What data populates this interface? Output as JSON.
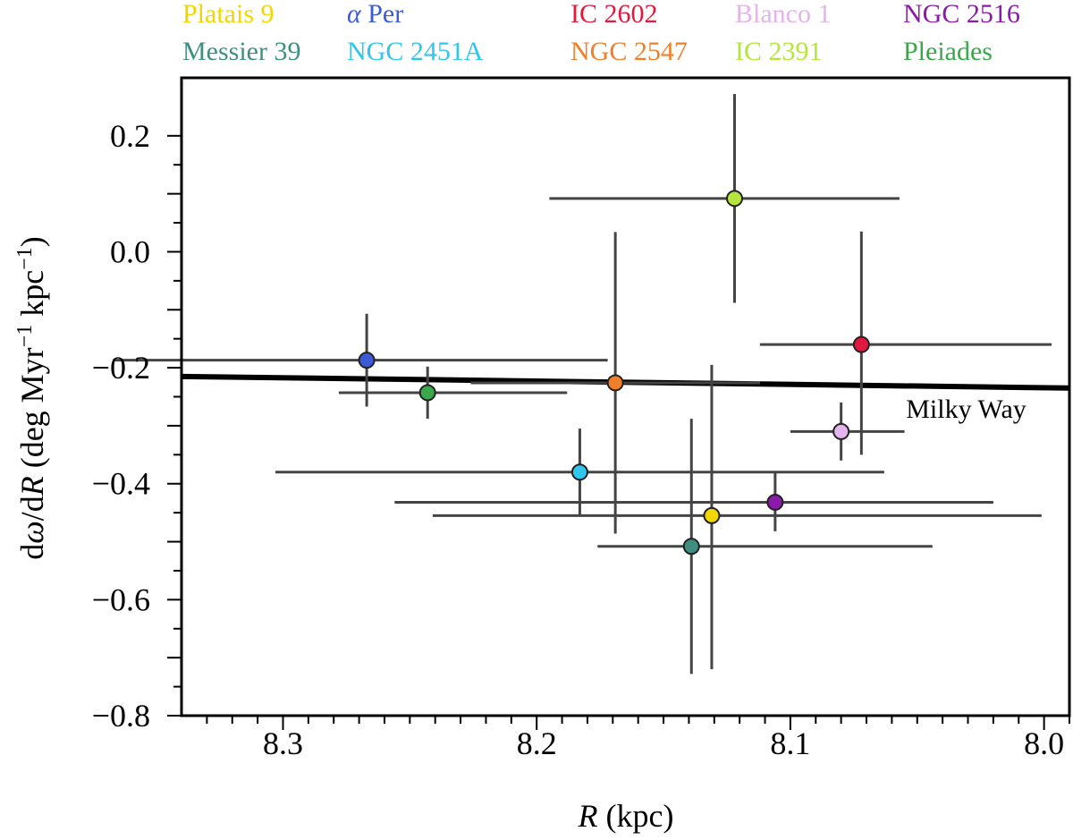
{
  "chart_data": {
    "type": "scatter",
    "xlabel": {
      "italic": "R",
      "rest": " (kpc)"
    },
    "ylabel": {
      "d1": "d",
      "omega": "ω",
      "slash": "/",
      "d2": "d",
      "R": "R",
      "rest": " (deg Myr",
      "exp1": "−1",
      "mid": " kpc",
      "exp2": "−1",
      "close": ")"
    },
    "xlim": [
      8.34,
      7.99
    ],
    "ylim": [
      -0.8,
      0.3
    ],
    "x_ticks": [
      8.3,
      8.2,
      8.1,
      8.0
    ],
    "x_tick_labels": [
      "8.3",
      "8.2",
      "8.1",
      "8.0"
    ],
    "y_ticks": [
      0.2,
      0.0,
      -0.2,
      -0.4,
      -0.6,
      -0.8
    ],
    "y_tick_labels": [
      "0.2",
      "0.0",
      "−0.2",
      "−0.4",
      "−0.6",
      "−0.8"
    ],
    "trend_line": {
      "label": "Milky Way",
      "x": [
        8.34,
        7.99
      ],
      "y": [
        -0.215,
        -0.235
      ]
    },
    "series": [
      {
        "name": "Platais 9",
        "color": "#f2d600",
        "x": 8.131,
        "y": -0.455,
        "x_err": [
          0.11,
          0.13
        ],
        "y_err": [
          0.265,
          0.26
        ]
      },
      {
        "name": "α Per",
        "color": "#3a5ad8",
        "x": 8.267,
        "y": -0.187,
        "x_err": [
          0.1,
          0.095
        ],
        "y_err": [
          0.08,
          0.08
        ]
      },
      {
        "name": "IC 2602",
        "color": "#e0193e",
        "x": 8.072,
        "y": -0.16,
        "x_err": [
          0.04,
          0.075
        ],
        "y_err": [
          0.19,
          0.195
        ]
      },
      {
        "name": "Blanco 1",
        "color": "#e5b3ee",
        "x": 8.08,
        "y": -0.31,
        "x_err": [
          0.02,
          0.025
        ],
        "y_err": [
          0.05,
          0.05
        ]
      },
      {
        "name": "NGC 2516",
        "color": "#8a1aa8",
        "x": 8.106,
        "y": -0.432,
        "x_err": [
          0.15,
          0.086
        ],
        "y_err": [
          0.05,
          0.05
        ]
      },
      {
        "name": "Messier 39",
        "color": "#3f8f80",
        "x": 8.139,
        "y": -0.508,
        "x_err": [
          0.037,
          0.095
        ],
        "y_err": [
          0.22,
          0.22
        ]
      },
      {
        "name": "NGC 2451A",
        "color": "#2fc6ef",
        "x": 8.183,
        "y": -0.38,
        "x_err": [
          0.12,
          0.12
        ],
        "y_err": [
          0.075,
          0.075
        ]
      },
      {
        "name": "NGC 2547",
        "color": "#f07f2a",
        "x": 8.169,
        "y": -0.226,
        "x_err": [
          0.057,
          0.057
        ],
        "y_err": [
          0.26,
          0.26
        ]
      },
      {
        "name": "IC 2391",
        "color": "#b4e63b",
        "x": 8.122,
        "y": 0.092,
        "x_err": [
          0.073,
          0.065
        ],
        "y_err": [
          0.18,
          0.18
        ]
      },
      {
        "name": "Pleiades",
        "color": "#3aa84a",
        "x": 8.243,
        "y": -0.243,
        "x_err": [
          0.035,
          0.055
        ],
        "y_err": [
          0.045,
          0.045
        ]
      }
    ],
    "legend": {
      "placement": "top",
      "rows": [
        [
          "Platais 9",
          "α Per",
          "IC 2602",
          "Blanco 1",
          "NGC 2516"
        ],
        [
          "Messier 39",
          "NGC 2451A",
          "NGC 2547",
          "IC 2391",
          "Pleiades"
        ]
      ]
    }
  }
}
